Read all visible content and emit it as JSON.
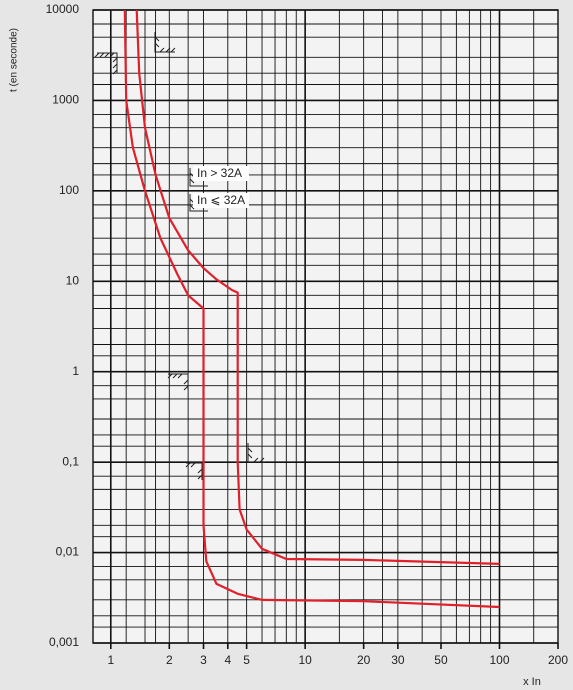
{
  "chart_data": {
    "type": "line",
    "y_label": "t (en seconde)",
    "x_label": "x In",
    "annotations": [
      "In > 32A",
      "In ⩽ 32A"
    ],
    "log_x": true,
    "log_y": true,
    "grid": true,
    "xlim": [
      0.81,
      200
    ],
    "ylim": [
      0.001,
      10000
    ],
    "xticks": [
      1,
      2,
      3,
      4,
      5,
      10,
      20,
      30,
      50,
      100,
      200
    ],
    "yticks": [
      10000,
      1000,
      100,
      10,
      1,
      {
        "value": 0.1,
        "label": "0,1"
      },
      {
        "value": 0.01,
        "label": "0,01"
      },
      {
        "value": 0.001,
        "label": "0,001"
      }
    ],
    "xgrid": [
      1,
      1.2,
      1.5,
      1.7,
      2,
      2.5,
      3,
      4,
      5,
      6,
      7,
      8,
      9,
      10,
      15,
      20,
      25,
      30,
      40,
      50,
      60,
      70,
      80,
      90,
      100,
      150
    ],
    "ygrid": [
      0.0015,
      0.002,
      0.003,
      0.005,
      0.007,
      0.015,
      0.02,
      0.03,
      0.05,
      0.07,
      0.15,
      0.2,
      0.3,
      0.5,
      0.7,
      1.5,
      2,
      3,
      5,
      7,
      15,
      20,
      30,
      50,
      70,
      150,
      200,
      300,
      500,
      700,
      1500,
      2000,
      3000,
      5000,
      7000
    ],
    "series": [
      {
        "color": "#e0202a",
        "x": [
          1.36,
          1.4,
          1.5,
          1.7,
          2,
          2.5,
          3,
          3.5,
          4.2,
          4.5,
          4.5,
          4.6,
          5,
          6,
          8,
          20,
          100
        ],
        "values": [
          10000,
          2000,
          500,
          150,
          50,
          22,
          14,
          10.5,
          8,
          7.5,
          0.1,
          0.03,
          0.018,
          0.011,
          0.0085,
          0.0083,
          0.0075
        ]
      },
      {
        "color": "#e0202a",
        "x": [
          1.18,
          1.2,
          1.3,
          1.5,
          1.8,
          2.2,
          2.5,
          3,
          3,
          3.1,
          3.5,
          4.5,
          6,
          20,
          100
        ],
        "values": [
          10000,
          1000,
          300,
          100,
          30,
          12,
          7,
          5,
          0.02,
          0.008,
          0.0045,
          0.0035,
          0.003,
          0.0029,
          0.0025
        ]
      }
    ]
  }
}
